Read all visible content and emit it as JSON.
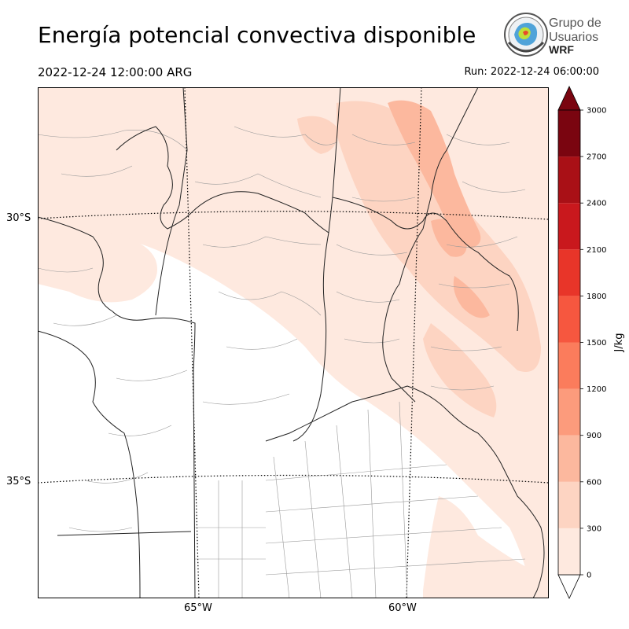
{
  "header": {
    "title": "Energía potencial convectiva disponible",
    "valid_time": "2022-12-24 12:00:00 ARG",
    "run_time": "Run: 2022-12-24 06:00:00"
  },
  "logo": {
    "line1": "Grupo de",
    "line2": "Usuarios",
    "line3": "WRF"
  },
  "map": {
    "lat_labels": [
      "30°S",
      "35°S"
    ],
    "lon_labels": [
      "65°W",
      "60°W"
    ]
  },
  "colorbar": {
    "unit": "J/kg",
    "ticks": [
      "0",
      "300",
      "600",
      "900",
      "1200",
      "1500",
      "1800",
      "2100",
      "2400",
      "2700",
      "3000"
    ],
    "colors": [
      "#fee9df",
      "#fdd4c2",
      "#fcb89e",
      "#fc9b7c",
      "#fb7c5c",
      "#f6573f",
      "#e83529",
      "#c9181d",
      "#a91016",
      "#7a0510"
    ],
    "extend": "both"
  }
}
